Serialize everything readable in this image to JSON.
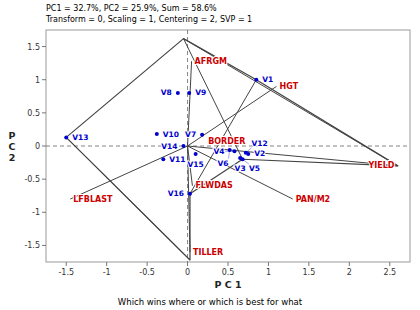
{
  "chart_data": {
    "type": "biplot",
    "title": "PC1 = 32.7%, PC2 = 25.9%, Sum = 58.6%\nTransform = 0, Scaling = 1, Centering = 2, SVP = 1",
    "subtitle": "Which wins where or which is best for what",
    "xlabel": "P C 1",
    "ylabel": "P\nC\n2",
    "xlim": [
      -1.75,
      2.75
    ],
    "ylim": [
      -1.75,
      1.75
    ],
    "xticks": [
      -1.5,
      -1.0,
      -0.5,
      0.0,
      0.5,
      1.0,
      1.5,
      2.0,
      2.5
    ],
    "yticks": [
      -1.5,
      -1.0,
      -0.5,
      0.0,
      0.5,
      1.0,
      1.5
    ],
    "series": [
      {
        "type": "scatter",
        "marker": "circle",
        "color": "#0000cc",
        "labels": [
          "V1",
          "V2",
          "V3",
          "V4",
          "V5",
          "V6",
          "V7",
          "V8",
          "V9",
          "V10",
          "V11",
          "V12",
          "V13",
          "V14",
          "V15",
          "V16"
        ],
        "x": [
          0.85,
          0.75,
          0.65,
          0.58,
          0.68,
          0.52,
          0.18,
          -0.12,
          0.02,
          -0.38,
          -0.3,
          0.72,
          -1.5,
          -0.05,
          0.1,
          0.03
        ],
        "values": [
          1.0,
          -0.12,
          -0.18,
          -0.08,
          -0.2,
          -0.06,
          0.17,
          0.8,
          0.8,
          0.18,
          -0.2,
          -0.1,
          0.13,
          0.0,
          -0.12,
          -0.72
        ]
      },
      {
        "type": "vector",
        "color": "#cc0000",
        "labels": [
          "HGT",
          "YIELD",
          "AFRGM",
          "LFBLAST",
          "TILLER",
          "PAN/M2",
          "FLWDAS"
        ],
        "x": [
          1.1,
          2.6,
          0.05,
          -1.45,
          0.03,
          1.3,
          0.06
        ],
        "values": [
          0.9,
          -0.3,
          1.28,
          -0.8,
          -1.6,
          -0.8,
          -0.6
        ]
      },
      {
        "type": "text",
        "color": "#cc0000",
        "labels": [
          "BORDER"
        ],
        "x": [
          0.28
        ],
        "values": [
          0.0
        ]
      },
      {
        "type": "polygon",
        "color": "#444444",
        "x": [
          -1.5,
          -0.05,
          0.85,
          2.6,
          0.68,
          0.03,
          0.03,
          -1.5
        ],
        "values": [
          0.13,
          1.62,
          1.0,
          -0.3,
          -0.2,
          -0.72,
          -1.72,
          0.13
        ]
      },
      {
        "type": "segments",
        "color": "#444444",
        "x": [
          [
            -1.5,
            0.03
          ],
          [
            -0.05,
            0.68
          ],
          [
            0.85,
            0.03
          ],
          [
            2.6,
            -0.05
          ]
        ],
        "values": [
          [
            0.13,
            -1.72
          ],
          [
            1.62,
            -0.2
          ],
          [
            1.0,
            -0.72
          ],
          [
            -0.3,
            1.62
          ]
        ]
      }
    ]
  }
}
